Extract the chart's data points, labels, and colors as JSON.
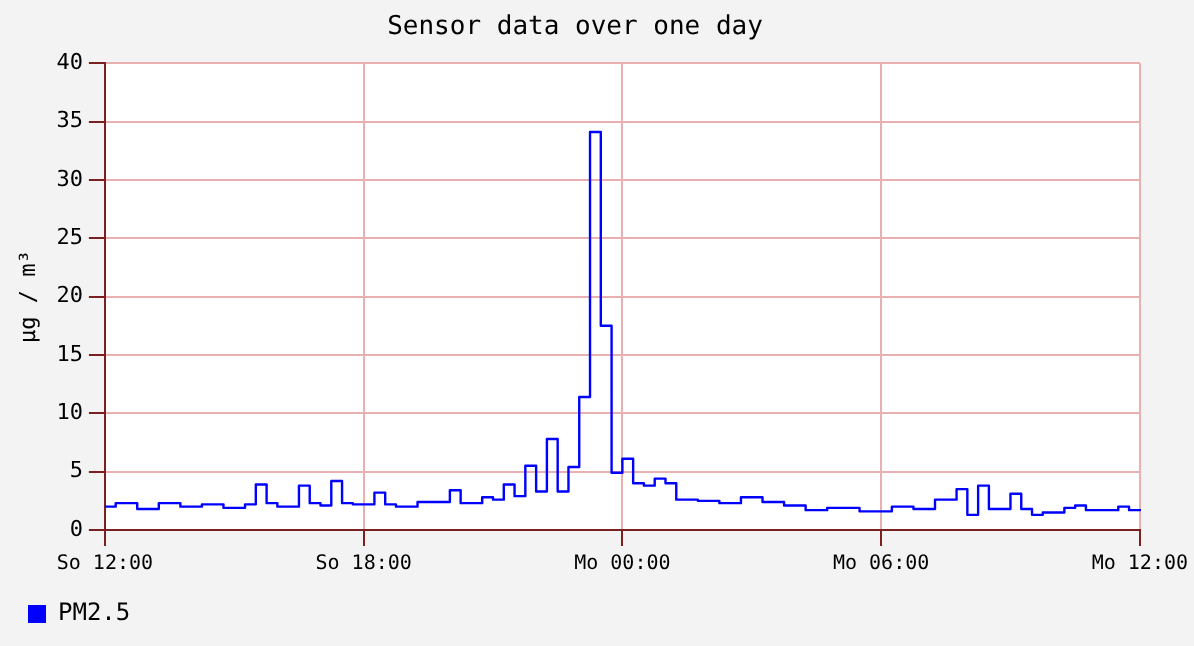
{
  "chart_data": {
    "type": "step",
    "title": "Sensor data over one day",
    "ylabel": "µg / m³",
    "categories": [
      "So 12:00",
      null,
      null,
      null,
      null,
      null,
      null,
      null,
      null,
      null,
      null,
      null,
      null,
      null,
      null,
      null,
      null,
      null,
      null,
      null,
      null,
      null,
      null,
      null,
      "So 18:00",
      null,
      null,
      null,
      null,
      null,
      null,
      null,
      null,
      null,
      null,
      null,
      null,
      null,
      null,
      null,
      null,
      null,
      null,
      null,
      null,
      null,
      null,
      null,
      "Mo 00:00",
      null,
      null,
      null,
      null,
      null,
      null,
      null,
      null,
      null,
      null,
      null,
      null,
      null,
      null,
      null,
      null,
      null,
      null,
      null,
      null,
      null,
      null,
      null,
      "Mo 06:00",
      null,
      null,
      null,
      null,
      null,
      null,
      null,
      null,
      null,
      null,
      null,
      null,
      null,
      null,
      null,
      null,
      null,
      null,
      null,
      null,
      null,
      null,
      null,
      "Mo 12:00"
    ],
    "ylim": [
      0,
      40
    ],
    "yticks": [
      0,
      5,
      10,
      15,
      20,
      25,
      30,
      35,
      40
    ],
    "grid": true,
    "legend": "bottom left",
    "marker": "none",
    "line_style": "solid",
    "series": [
      {
        "name": "PM2.5",
        "color": "#0000ff",
        "values": [
          2.0,
          2.3,
          2.3,
          1.8,
          1.8,
          2.3,
          2.3,
          2.0,
          2.0,
          2.2,
          2.2,
          1.9,
          1.9,
          2.2,
          3.9,
          2.3,
          2.0,
          2.0,
          3.8,
          2.3,
          2.1,
          4.2,
          2.3,
          2.2,
          2.2,
          3.2,
          2.2,
          2.0,
          2.0,
          2.4,
          2.4,
          2.4,
          3.4,
          2.3,
          2.3,
          2.8,
          2.6,
          3.9,
          2.9,
          5.5,
          3.3,
          7.8,
          3.3,
          5.4,
          11.4,
          34.1,
          17.5,
          4.9,
          6.1,
          4.0,
          3.8,
          4.4,
          4.0,
          2.6,
          2.6,
          2.5,
          2.5,
          2.3,
          2.3,
          2.8,
          2.8,
          2.4,
          2.4,
          2.1,
          2.1,
          1.7,
          1.7,
          1.9,
          1.9,
          1.9,
          1.6,
          1.6,
          1.6,
          2.0,
          2.0,
          1.8,
          1.8,
          2.6,
          2.6,
          3.5,
          1.3,
          3.8,
          1.8,
          1.8,
          3.1,
          1.8,
          1.3,
          1.5,
          1.5,
          1.9,
          2.1,
          1.7,
          1.7,
          1.7,
          2.0,
          1.7,
          1.8
        ]
      }
    ]
  }
}
